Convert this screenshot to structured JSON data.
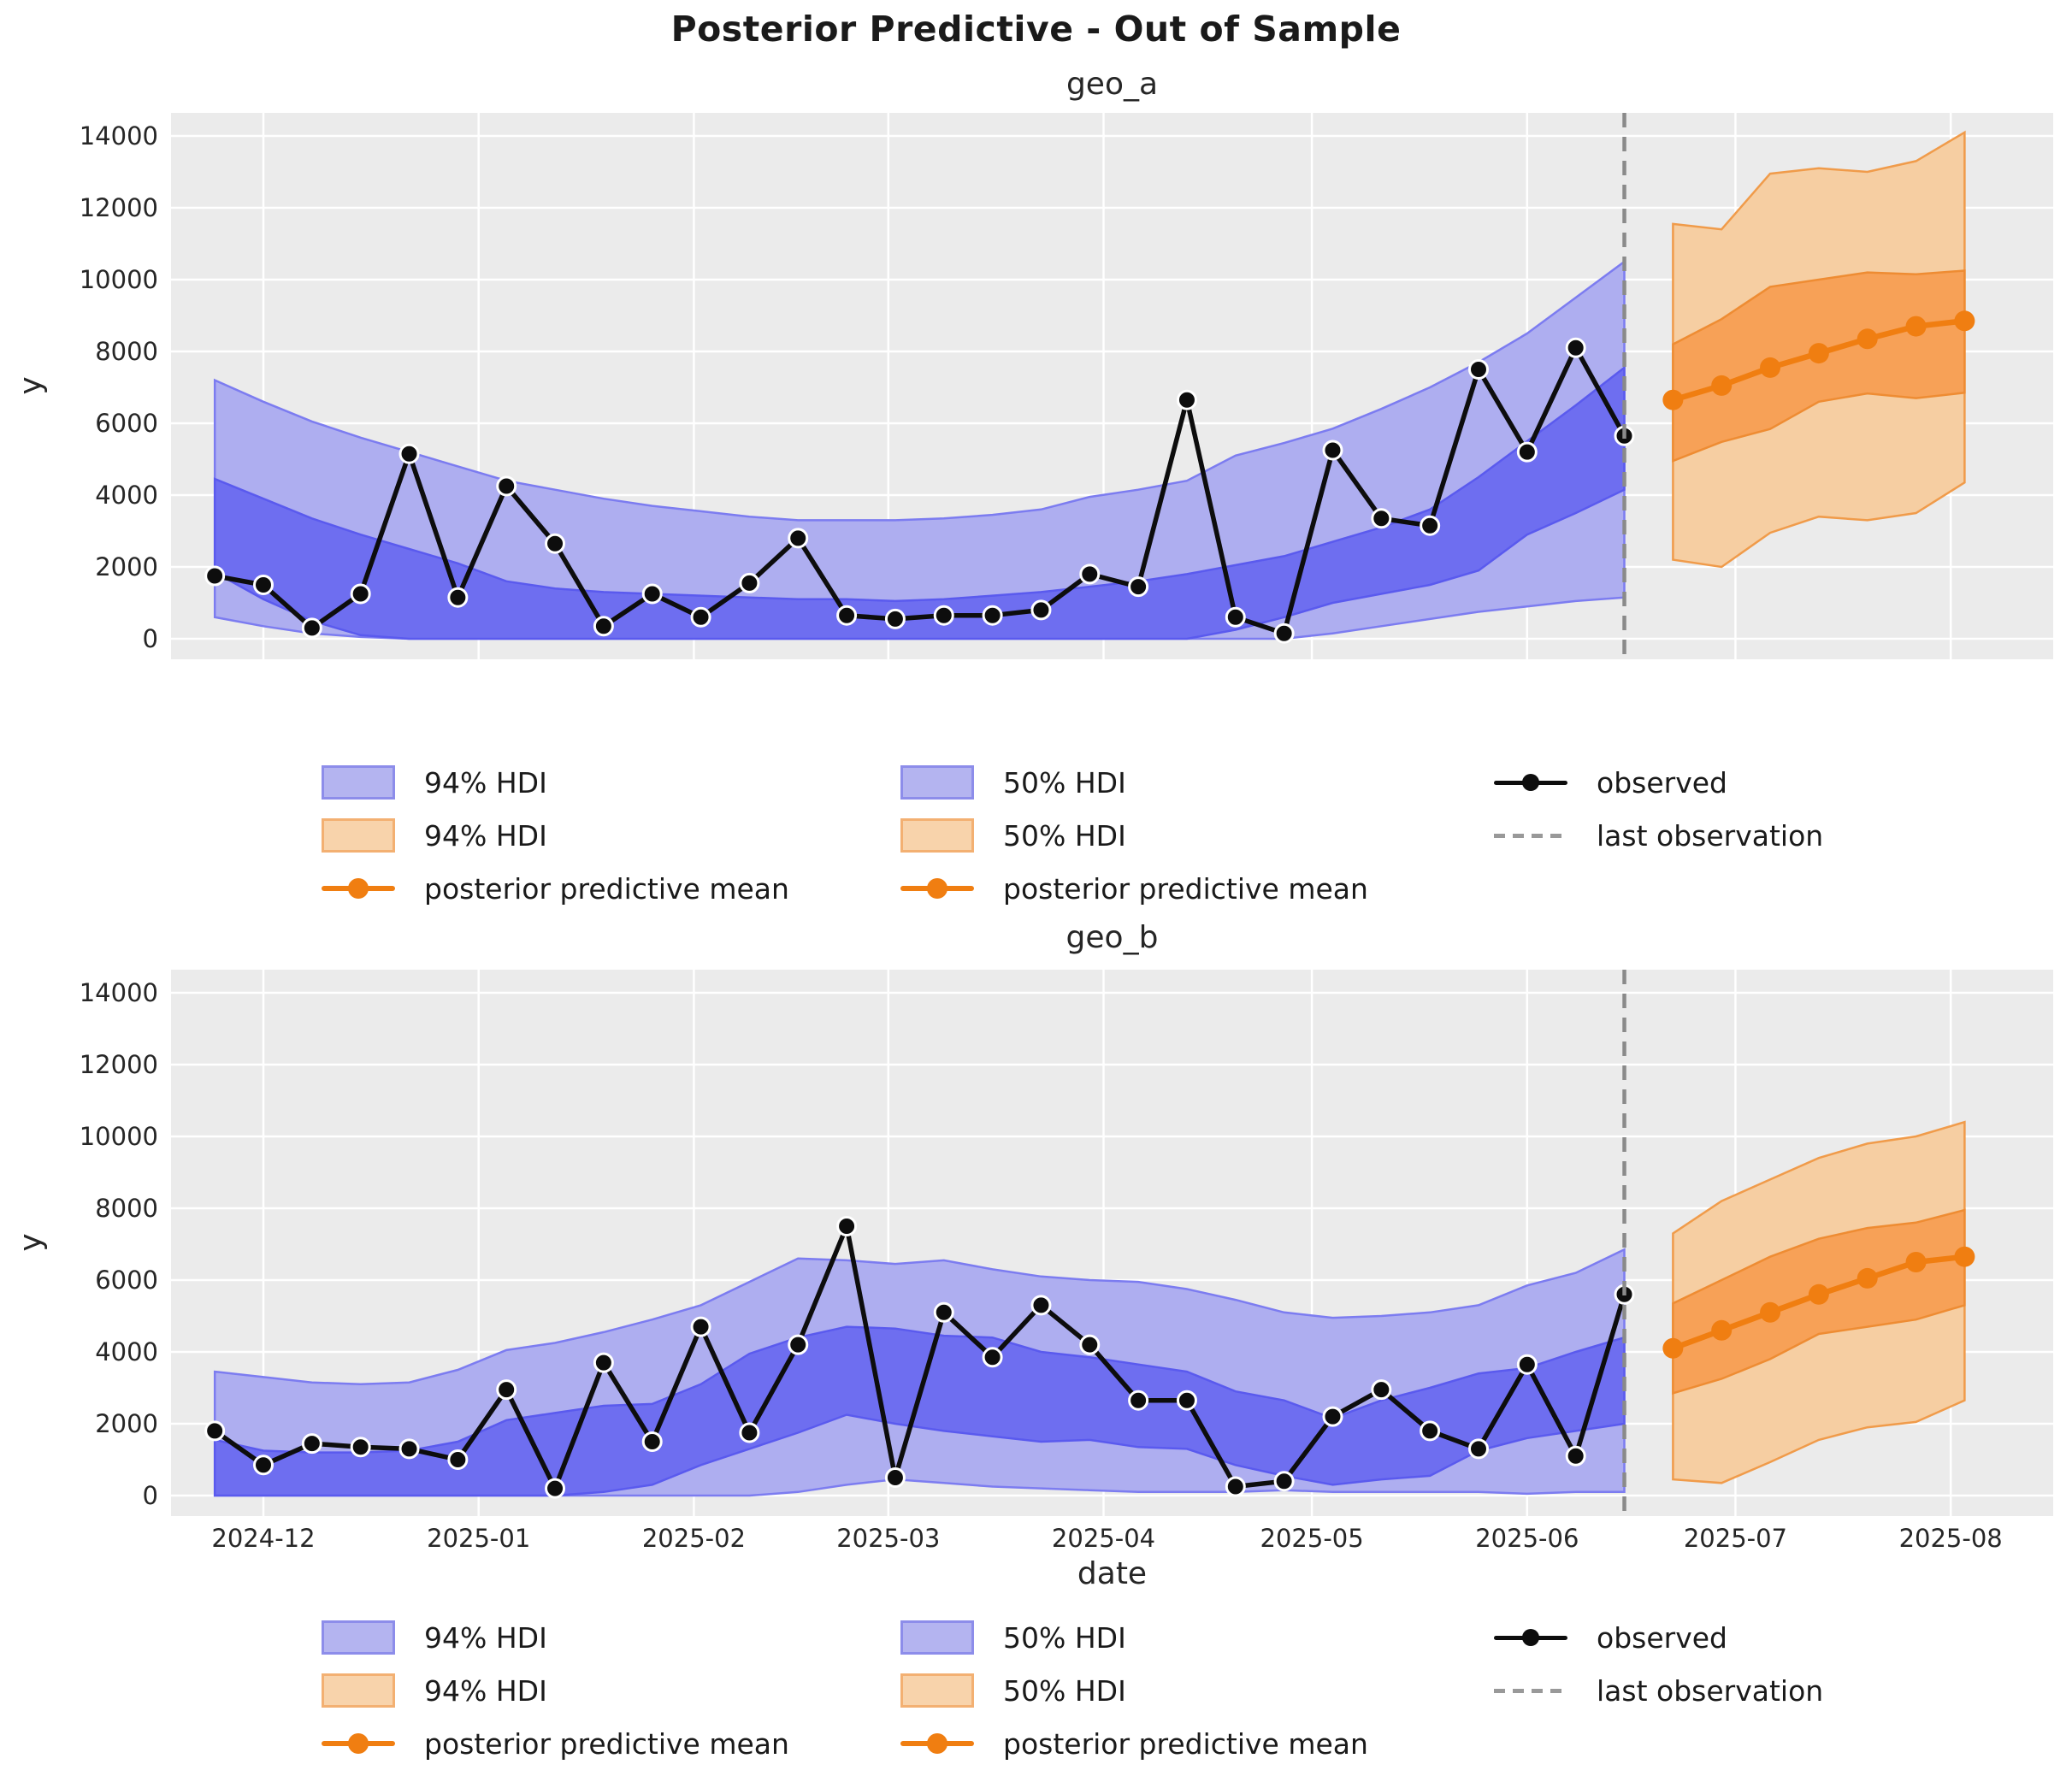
{
  "title": "Posterior Predictive - Out of Sample",
  "axes": {
    "ylabel": "y",
    "xlabel": "date",
    "yticks": [
      0,
      2000,
      4000,
      6000,
      8000,
      10000,
      12000,
      14000
    ],
    "xticks": [
      {
        "label": "2024-12",
        "date": "2024-12-01"
      },
      {
        "label": "2025-01",
        "date": "2025-01-01"
      },
      {
        "label": "2025-02",
        "date": "2025-02-01"
      },
      {
        "label": "2025-03",
        "date": "2025-03-01"
      },
      {
        "label": "2025-04",
        "date": "2025-04-01"
      },
      {
        "label": "2025-05",
        "date": "2025-05-01"
      },
      {
        "label": "2025-06",
        "date": "2025-06-01"
      },
      {
        "label": "2025-07",
        "date": "2025-07-01"
      },
      {
        "label": "2025-08",
        "date": "2025-08-01"
      }
    ]
  },
  "legend": {
    "hdi94": "94% HDI",
    "hdi50": "50% HDI",
    "mean": "posterior predictive mean",
    "observed": "observed",
    "last_obs": "last observation"
  },
  "colors": {
    "plot_bg": "#ebebeb",
    "grid": "#ffffff",
    "blue94_fill": "#aeaef0",
    "blue50_fill": "#6e6ef0",
    "blue_edge": "#6060f0",
    "orange94_fill": "#f6cea2",
    "orange50_fill": "#f7a157",
    "orange_edge": "#f09b4a",
    "orange_mean": "#f07e11",
    "observed_line": "#0d0d0d",
    "last_obs_line": "#8a8a8a"
  },
  "chart_data": [
    {
      "type": "line",
      "title": "geo_a",
      "ylabel": "y",
      "ylim": [
        0,
        14000
      ],
      "grid": true,
      "last_observation_date": "2025-06-15",
      "observed": {
        "dates": [
          "2024-11-24",
          "2024-12-01",
          "2024-12-08",
          "2024-12-15",
          "2024-12-22",
          "2024-12-29",
          "2025-01-05",
          "2025-01-12",
          "2025-01-19",
          "2025-01-26",
          "2025-02-02",
          "2025-02-09",
          "2025-02-16",
          "2025-02-23",
          "2025-03-02",
          "2025-03-09",
          "2025-03-16",
          "2025-03-23",
          "2025-03-30",
          "2025-04-06",
          "2025-04-13",
          "2025-04-20",
          "2025-04-27",
          "2025-05-04",
          "2025-05-11",
          "2025-05-18",
          "2025-05-25",
          "2025-06-01",
          "2025-06-08",
          "2025-06-15"
        ],
        "values": [
          1750,
          1500,
          300,
          1250,
          5150,
          1150,
          4250,
          2650,
          350,
          1250,
          600,
          1550,
          2800,
          650,
          550,
          650,
          650,
          800,
          1800,
          1450,
          6650,
          600,
          150,
          5250,
          3350,
          3150,
          7500,
          5200,
          8100,
          5650
        ]
      },
      "insample_hdi": {
        "hdi94_hi": [
          7200,
          6600,
          6050,
          5600,
          5200,
          4800,
          4400,
          4150,
          3900,
          3700,
          3550,
          3400,
          3300,
          3300,
          3300,
          3350,
          3450,
          3600,
          3950,
          4150,
          4400,
          5100,
          5450,
          5850,
          6400,
          7000,
          7700,
          8500,
          9500,
          10500
        ],
        "hdi94_lo": [
          600,
          350,
          150,
          50,
          0,
          0,
          0,
          0,
          0,
          0,
          0,
          0,
          0,
          0,
          0,
          0,
          0,
          0,
          0,
          0,
          0,
          0,
          0,
          150,
          350,
          550,
          750,
          900,
          1050,
          1150
        ],
        "hdi50_hi": [
          4450,
          3900,
          3350,
          2900,
          2500,
          2100,
          1600,
          1400,
          1300,
          1250,
          1200,
          1150,
          1100,
          1100,
          1050,
          1100,
          1200,
          1300,
          1450,
          1600,
          1800,
          2050,
          2300,
          2700,
          3100,
          3600,
          4500,
          5500,
          6500,
          7550
        ],
        "hdi50_lo": [
          1850,
          1100,
          500,
          100,
          0,
          0,
          0,
          0,
          0,
          0,
          0,
          0,
          0,
          0,
          0,
          0,
          0,
          0,
          0,
          0,
          0,
          250,
          600,
          1000,
          1250,
          1500,
          1900,
          2900,
          3500,
          4150
        ]
      },
      "forecast": {
        "dates": [
          "2025-06-22",
          "2025-06-29",
          "2025-07-06",
          "2025-07-13",
          "2025-07-20",
          "2025-07-27",
          "2025-08-03"
        ],
        "mean": [
          6650,
          7050,
          7550,
          7950,
          8350,
          8700,
          8850
        ],
        "hdi94_hi": [
          11550,
          11400,
          12950,
          13100,
          13000,
          13300,
          14100
        ],
        "hdi94_lo": [
          2200,
          2000,
          2950,
          3400,
          3300,
          3500,
          4350
        ],
        "hdi50_hi": [
          8200,
          8900,
          9800,
          10000,
          10200,
          10150,
          10250
        ],
        "hdi50_lo": [
          4950,
          5480,
          5840,
          6600,
          6830,
          6700,
          6850
        ]
      }
    },
    {
      "type": "line",
      "title": "geo_b",
      "ylabel": "y",
      "ylim": [
        0,
        14000
      ],
      "grid": true,
      "last_observation_date": "2025-06-15",
      "observed": {
        "dates": [
          "2024-11-24",
          "2024-12-01",
          "2024-12-08",
          "2024-12-15",
          "2024-12-22",
          "2024-12-29",
          "2025-01-05",
          "2025-01-12",
          "2025-01-19",
          "2025-01-26",
          "2025-02-02",
          "2025-02-09",
          "2025-02-16",
          "2025-02-23",
          "2025-03-02",
          "2025-03-09",
          "2025-03-16",
          "2025-03-23",
          "2025-03-30",
          "2025-04-06",
          "2025-04-13",
          "2025-04-20",
          "2025-04-27",
          "2025-05-04",
          "2025-05-11",
          "2025-05-18",
          "2025-05-25",
          "2025-06-01",
          "2025-06-08",
          "2025-06-15"
        ],
        "values": [
          1800,
          850,
          1450,
          1350,
          1300,
          1000,
          2950,
          200,
          3700,
          1500,
          4700,
          1750,
          4200,
          7500,
          500,
          5100,
          3850,
          5300,
          4200,
          2650,
          2650,
          250,
          400,
          2200,
          2950,
          1800,
          1300,
          3650,
          1100,
          5600
        ]
      },
      "insample_hdi": {
        "hdi94_hi": [
          3450,
          3300,
          3150,
          3100,
          3150,
          3500,
          4050,
          4250,
          4550,
          4900,
          5300,
          5950,
          6600,
          6550,
          6450,
          6550,
          6300,
          6100,
          6000,
          5950,
          5750,
          5450,
          5100,
          4950,
          5000,
          5100,
          5300,
          5850,
          6200,
          6850
        ],
        "hdi94_lo": [
          0,
          0,
          0,
          0,
          0,
          0,
          0,
          0,
          0,
          0,
          0,
          0,
          100,
          300,
          450,
          350,
          250,
          200,
          150,
          100,
          100,
          100,
          150,
          100,
          100,
          100,
          100,
          50,
          100,
          100
        ],
        "hdi50_hi": [
          1550,
          1250,
          1200,
          1200,
          1250,
          1500,
          2100,
          2300,
          2500,
          2550,
          3100,
          3950,
          4400,
          4700,
          4650,
          4450,
          4400,
          4000,
          3850,
          3650,
          3450,
          2900,
          2650,
          2150,
          2650,
          3000,
          3400,
          3550,
          4000,
          4400
        ],
        "hdi50_lo": [
          0,
          0,
          0,
          0,
          0,
          0,
          0,
          0,
          100,
          300,
          850,
          1300,
          1750,
          2250,
          2000,
          1800,
          1650,
          1500,
          1550,
          1350,
          1300,
          850,
          550,
          300,
          450,
          550,
          1250,
          1600,
          1800,
          2000
        ]
      },
      "forecast": {
        "dates": [
          "2025-06-22",
          "2025-06-29",
          "2025-07-06",
          "2025-07-13",
          "2025-07-20",
          "2025-07-27",
          "2025-08-03"
        ],
        "mean": [
          4100,
          4600,
          5100,
          5600,
          6050,
          6500,
          6650
        ],
        "hdi94_hi": [
          7300,
          8200,
          8800,
          9400,
          9800,
          10000,
          10400
        ],
        "hdi94_lo": [
          450,
          350,
          930,
          1550,
          1900,
          2050,
          2650
        ],
        "hdi50_hi": [
          5350,
          6000,
          6650,
          7150,
          7450,
          7600,
          7950
        ],
        "hdi50_lo": [
          2850,
          3250,
          3800,
          4500,
          4700,
          4900,
          5300
        ]
      }
    }
  ]
}
